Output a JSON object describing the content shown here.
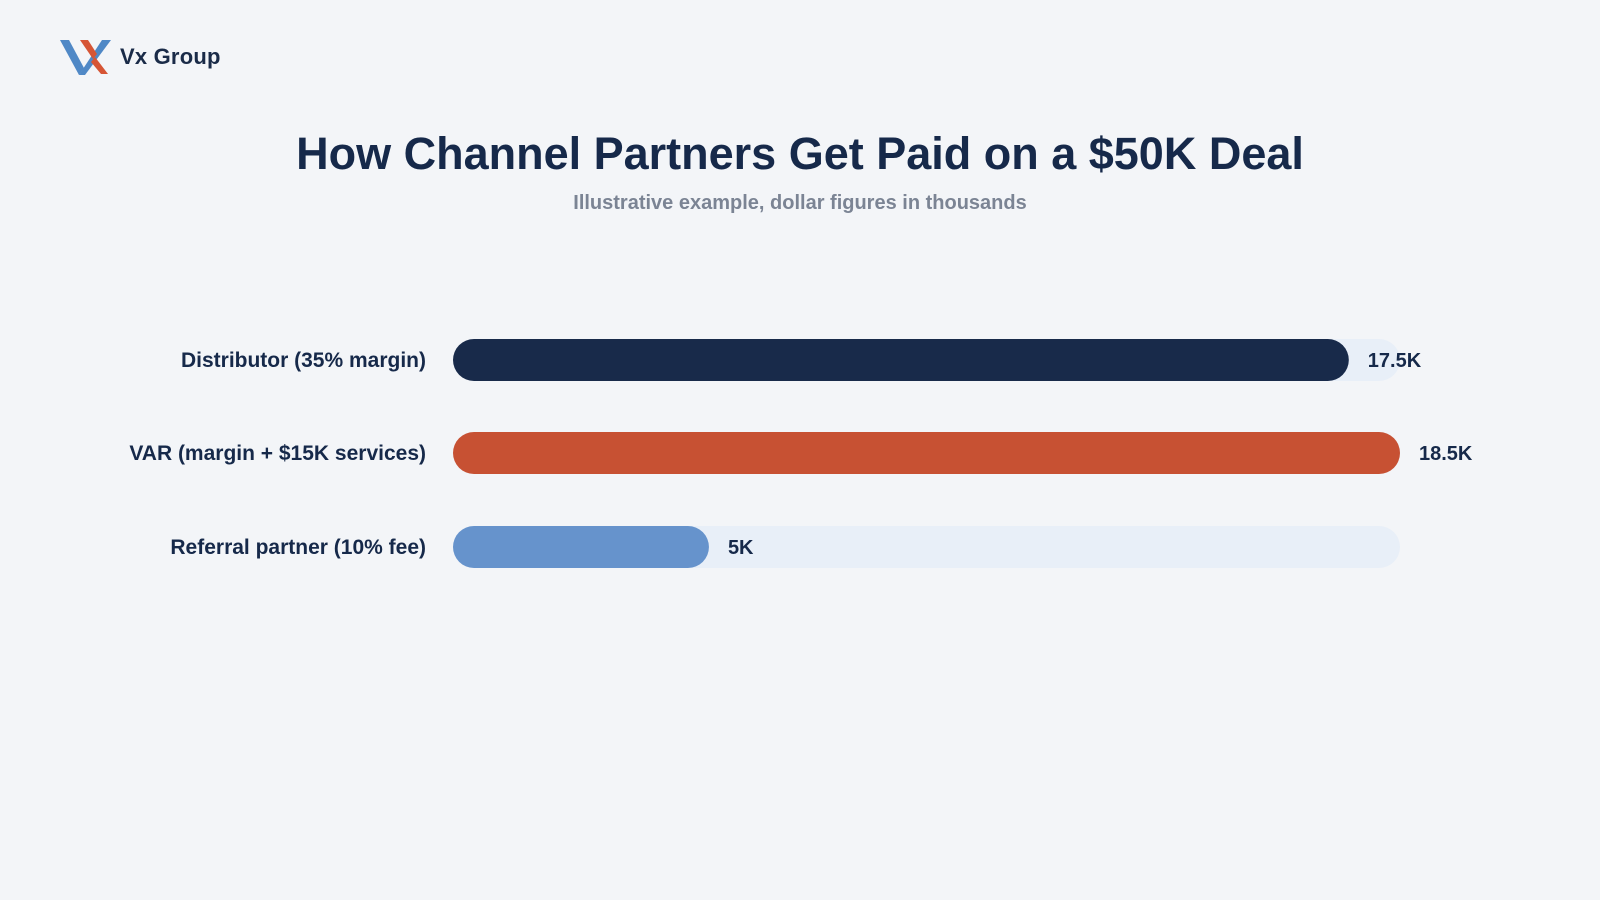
{
  "brand": {
    "name": "Vx Group",
    "logo_icon": "vx-logo-icon",
    "colors": {
      "blue": "#4f88c6",
      "orange": "#d65535"
    }
  },
  "chart_data": {
    "type": "bar",
    "orientation": "horizontal",
    "title": "How Channel Partners Get Paid on a $50K Deal",
    "subtitle": "Illustrative example, dollar figures in thousands",
    "unit": "K",
    "xlim": [
      0,
      18.5
    ],
    "grid": false,
    "legend": "none",
    "categories": [
      "Distributor (35% margin)",
      "VAR (margin + $15K services)",
      "Referral partner (10% fee)"
    ],
    "values": [
      17.5,
      18.5,
      5
    ],
    "value_labels": [
      "17.5K",
      "18.5K",
      "5K"
    ],
    "bar_colors": [
      "#182a4a",
      "#c75133",
      "#6693cc"
    ],
    "track_color": "#e8eff8",
    "label_color": "#16294a"
  }
}
